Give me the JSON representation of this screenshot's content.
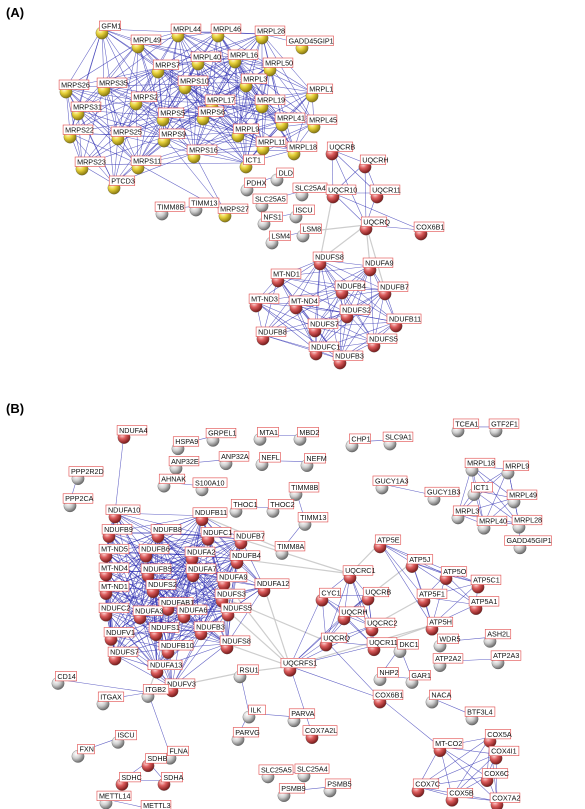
{
  "panels": [
    {
      "label": "(A)",
      "nodes": [
        {
          "id": "GFM1",
          "label": "GFM1",
          "color": "yellow"
        },
        {
          "id": "MRPL49",
          "label": "MRPL49",
          "color": "yellow"
        },
        {
          "id": "MRPL44",
          "label": "MRPL44",
          "color": "yellow"
        },
        {
          "id": "MRPL46",
          "label": "MRPL46",
          "color": "yellow"
        },
        {
          "id": "MRPL28",
          "label": "MRPL28",
          "color": "yellow"
        },
        {
          "id": "GADD45GIP1",
          "label": "GADD45GIP1",
          "color": "yellow"
        },
        {
          "id": "MRPS7",
          "label": "MRPS7",
          "color": "yellow"
        },
        {
          "id": "MRPL40",
          "label": "MRPL40",
          "color": "yellow"
        },
        {
          "id": "MRPL16",
          "label": "MRPL16",
          "color": "yellow"
        },
        {
          "id": "MRPL50",
          "label": "MRPL50",
          "color": "yellow"
        },
        {
          "id": "MRPS26",
          "label": "MRPS26",
          "color": "yellow"
        },
        {
          "id": "MRPS35",
          "label": "MRPS35",
          "color": "yellow"
        },
        {
          "id": "MRPS10",
          "label": "MRPS10",
          "color": "yellow"
        },
        {
          "id": "MRPL3",
          "label": "MRPL3",
          "color": "yellow"
        },
        {
          "id": "MRPL1",
          "label": "MRPL1",
          "color": "yellow"
        },
        {
          "id": "MRPS31",
          "label": "MRPS31",
          "color": "yellow"
        },
        {
          "id": "MRPS2",
          "label": "MRPS2",
          "color": "yellow"
        },
        {
          "id": "MRPL17",
          "label": "MRPL17",
          "color": "yellow"
        },
        {
          "id": "MRPL19",
          "label": "MRPL19",
          "color": "yellow"
        },
        {
          "id": "MRPS5",
          "label": "MRPS5",
          "color": "yellow"
        },
        {
          "id": "MRPS6",
          "label": "MRPS6",
          "color": "yellow"
        },
        {
          "id": "MRPL41",
          "label": "MRPL41",
          "color": "yellow"
        },
        {
          "id": "MRPL45",
          "label": "MRPL45",
          "color": "yellow"
        },
        {
          "id": "MRPS22",
          "label": "MRPS22",
          "color": "yellow"
        },
        {
          "id": "MRPS25",
          "label": "MRPS25",
          "color": "yellow"
        },
        {
          "id": "MRPS9",
          "label": "MRPS9",
          "color": "yellow"
        },
        {
          "id": "MRPL9",
          "label": "MRPL9",
          "color": "yellow"
        },
        {
          "id": "MRPL11",
          "label": "MRPL11",
          "color": "yellow"
        },
        {
          "id": "MRPL18",
          "label": "MRPL18",
          "color": "yellow"
        },
        {
          "id": "MRPS16",
          "label": "MRPS16",
          "color": "yellow"
        },
        {
          "id": "ICT1",
          "label": "ICT1",
          "color": "yellow"
        },
        {
          "id": "MRPS23",
          "label": "MRPS23",
          "color": "yellow"
        },
        {
          "id": "MRPS11",
          "label": "MRPS11",
          "color": "yellow"
        },
        {
          "id": "PTCD3",
          "label": "PTCD3",
          "color": "yellow"
        },
        {
          "id": "MRPS27",
          "label": "MRPS27",
          "color": "yellow"
        },
        {
          "id": "TIMM8B",
          "label": "TIMM8B",
          "color": "gray"
        },
        {
          "id": "TIMM13",
          "label": "TIMM13",
          "color": "gray"
        },
        {
          "id": "PDHX",
          "label": "PDHX",
          "color": "gray"
        },
        {
          "id": "DLD",
          "label": "DLD",
          "color": "gray"
        },
        {
          "id": "SLC25A4",
          "label": "SLC25A4",
          "color": "gray"
        },
        {
          "id": "SLC25A5",
          "label": "SLC25A5",
          "color": "gray"
        },
        {
          "id": "ISCU",
          "label": "ISCU",
          "color": "gray"
        },
        {
          "id": "NFS1",
          "label": "NFS1",
          "color": "gray"
        },
        {
          "id": "LSM4",
          "label": "LSM4",
          "color": "gray"
        },
        {
          "id": "LSM8",
          "label": "LSM8",
          "color": "gray"
        },
        {
          "id": "UQCRB",
          "label": "UQCRB",
          "color": "red"
        },
        {
          "id": "UQCRH",
          "label": "UQCRH",
          "color": "red"
        },
        {
          "id": "UQCR10",
          "label": "UQCR10",
          "color": "red"
        },
        {
          "id": "UQCR11",
          "label": "UQCR11",
          "color": "red"
        },
        {
          "id": "UQCRQ",
          "label": "UQCRQ",
          "color": "red"
        },
        {
          "id": "COX6B1",
          "label": "COX6B1",
          "color": "red"
        },
        {
          "id": "NDUFS8",
          "label": "NDUFS8",
          "color": "red"
        },
        {
          "id": "NDUFA9",
          "label": "NDUFA9",
          "color": "red"
        },
        {
          "id": "MT-ND1",
          "label": "MT-ND1",
          "color": "red"
        },
        {
          "id": "NDUFB4",
          "label": "NDUFB4",
          "color": "red"
        },
        {
          "id": "NDUFB7",
          "label": "NDUFB7",
          "color": "red"
        },
        {
          "id": "MT-ND3",
          "label": "MT-ND3",
          "color": "red"
        },
        {
          "id": "MT-ND4",
          "label": "MT-ND4",
          "color": "red"
        },
        {
          "id": "NDUFS2",
          "label": "NDUFS2",
          "color": "red"
        },
        {
          "id": "NDUFS7",
          "label": "NDUFS7",
          "color": "red"
        },
        {
          "id": "NDUFB11",
          "label": "NDUFB11",
          "color": "red"
        },
        {
          "id": "NDUFB8",
          "label": "NDUFB8",
          "color": "red"
        },
        {
          "id": "NDUFS5",
          "label": "NDUFS5",
          "color": "red"
        },
        {
          "id": "NDUFC1",
          "label": "NDUFC1",
          "color": "red"
        },
        {
          "id": "NDUFB3",
          "label": "NDUFB3",
          "color": "red"
        }
      ]
    },
    {
      "label": "(B)",
      "nodes": [
        {
          "id": "NDUFA4",
          "label": "NDUFA4",
          "color": "red"
        },
        {
          "id": "HSPA9",
          "label": "HSPA9",
          "color": "gray"
        },
        {
          "id": "GRPEL1",
          "label": "GRPEL1",
          "color": "gray"
        },
        {
          "id": "ANP32E",
          "label": "ANP32E",
          "color": "gray"
        },
        {
          "id": "ANP32A",
          "label": "ANP32A",
          "color": "gray"
        },
        {
          "id": "AHNAK",
          "label": "AHNAK",
          "color": "gray"
        },
        {
          "id": "S100A10",
          "label": "S100A10",
          "color": "gray"
        },
        {
          "id": "MTA1",
          "label": "MTA1",
          "color": "gray"
        },
        {
          "id": "MBD2",
          "label": "MBD2",
          "color": "gray"
        },
        {
          "id": "NEFL",
          "label": "NEFL",
          "color": "gray"
        },
        {
          "id": "NEFM",
          "label": "NEFM",
          "color": "gray"
        },
        {
          "id": "CHP1",
          "label": "CHP1",
          "color": "gray"
        },
        {
          "id": "SLC9A1",
          "label": "SLC9A1",
          "color": "gray"
        },
        {
          "id": "TCEA1",
          "label": "TCEA1",
          "color": "gray"
        },
        {
          "id": "GTF2F1",
          "label": "GTF2F1",
          "color": "gray"
        },
        {
          "id": "PPP2R2D",
          "label": "PPP2R2D",
          "color": "gray"
        },
        {
          "id": "PPP2CA",
          "label": "PPP2CA",
          "color": "gray"
        },
        {
          "id": "TIMM8B",
          "label": "TIMM8B",
          "color": "gray"
        },
        {
          "id": "GUCY1A3",
          "label": "GUCY1A3",
          "color": "gray"
        },
        {
          "id": "GUCY1B3",
          "label": "GUCY1B3",
          "color": "gray"
        },
        {
          "id": "MRPL18",
          "label": "MRPL18",
          "color": "gray"
        },
        {
          "id": "MRPL9",
          "label": "MRPL9",
          "color": "gray"
        },
        {
          "id": "ICT1",
          "label": "ICT1",
          "color": "gray"
        },
        {
          "id": "MRPL49",
          "label": "MRPL49",
          "color": "gray"
        },
        {
          "id": "MRPL3",
          "label": "MRPL3",
          "color": "gray"
        },
        {
          "id": "MRPL40",
          "label": "MRPL40",
          "color": "gray"
        },
        {
          "id": "MRPL28",
          "label": "MRPL28",
          "color": "gray"
        },
        {
          "id": "GADD45GIP1",
          "label": "GADD45GIP1",
          "color": "gray"
        },
        {
          "id": "THOC1",
          "label": "THOC1",
          "color": "gray"
        },
        {
          "id": "THOC2",
          "label": "THOC2",
          "color": "gray"
        },
        {
          "id": "TIMM13",
          "label": "TIMM13",
          "color": "gray"
        },
        {
          "id": "TIMM8A",
          "label": "TIMM8A",
          "color": "gray"
        },
        {
          "id": "NDUFA10",
          "label": "NDUFA10",
          "color": "red"
        },
        {
          "id": "NDUFB11",
          "label": "NDUFB11",
          "color": "red"
        },
        {
          "id": "NDUFB9",
          "label": "NDUFB9",
          "color": "red"
        },
        {
          "id": "NDUFB8",
          "label": "NDUFB8",
          "color": "red"
        },
        {
          "id": "NDUFC1",
          "label": "NDUFC1",
          "color": "red"
        },
        {
          "id": "NDUFB7",
          "label": "NDUFB7",
          "color": "red"
        },
        {
          "id": "MT-ND5",
          "label": "MT-ND5",
          "color": "red"
        },
        {
          "id": "NDUFB6",
          "label": "NDUFB6",
          "color": "red"
        },
        {
          "id": "NDUFA2",
          "label": "NDUFA2",
          "color": "red"
        },
        {
          "id": "MT-ND4",
          "label": "MT-ND4",
          "color": "red"
        },
        {
          "id": "NDUFB5",
          "label": "NDUFB5",
          "color": "red"
        },
        {
          "id": "NDUFA7",
          "label": "NDUFA7",
          "color": "red"
        },
        {
          "id": "NDUFB4",
          "label": "NDUFB4",
          "color": "red"
        },
        {
          "id": "MT-ND1",
          "label": "MT-ND1",
          "color": "red"
        },
        {
          "id": "NDUFS2",
          "label": "NDUFS2",
          "color": "red"
        },
        {
          "id": "NDUFA9",
          "label": "NDUFA9",
          "color": "red"
        },
        {
          "id": "NDUFAB1",
          "label": "NDUFAB1",
          "color": "red"
        },
        {
          "id": "NDUFS3",
          "label": "NDUFS3",
          "color": "red"
        },
        {
          "id": "NDUFA12",
          "label": "NDUFA12",
          "color": "red"
        },
        {
          "id": "NDUFC2",
          "label": "NDUFC2",
          "color": "red"
        },
        {
          "id": "NDUFA3",
          "label": "NDUFA3",
          "color": "red"
        },
        {
          "id": "NDUFA6",
          "label": "NDUFA6",
          "color": "red"
        },
        {
          "id": "NDUFS5",
          "label": "NDUFS5",
          "color": "red"
        },
        {
          "id": "NDUFS1",
          "label": "NDUFS1",
          "color": "red"
        },
        {
          "id": "NDUFB3",
          "label": "NDUFB3",
          "color": "red"
        },
        {
          "id": "NDUFS8",
          "label": "NDUFS8",
          "color": "red"
        },
        {
          "id": "NDUFV1",
          "label": "NDUFV1",
          "color": "red"
        },
        {
          "id": "NDUFB10",
          "label": "NDUFB10",
          "color": "red"
        },
        {
          "id": "NDUFS7",
          "label": "NDUFS7",
          "color": "red"
        },
        {
          "id": "NDUFA13",
          "label": "NDUFA13",
          "color": "red"
        },
        {
          "id": "NDUFV3",
          "label": "NDUFV3",
          "color": "red"
        },
        {
          "id": "CD14",
          "label": "CD14",
          "color": "gray"
        },
        {
          "id": "ITGAX",
          "label": "ITGAX",
          "color": "gray"
        },
        {
          "id": "ITGB2",
          "label": "ITGB2",
          "color": "gray"
        },
        {
          "id": "RSU1",
          "label": "RSU1",
          "color": "gray"
        },
        {
          "id": "ILK",
          "label": "ILK",
          "color": "gray"
        },
        {
          "id": "PARVA",
          "label": "PARVA",
          "color": "gray"
        },
        {
          "id": "PARVG",
          "label": "PARVG",
          "color": "gray"
        },
        {
          "id": "COX7A2L",
          "label": "COX7A2L",
          "color": "red"
        },
        {
          "id": "ISCU",
          "label": "ISCU",
          "color": "gray"
        },
        {
          "id": "FXN",
          "label": "FXN",
          "color": "gray"
        },
        {
          "id": "FLNA",
          "label": "FLNA",
          "color": "gray"
        },
        {
          "id": "SDHB",
          "label": "SDHB",
          "color": "red"
        },
        {
          "id": "SDHC",
          "label": "SDHC",
          "color": "red"
        },
        {
          "id": "SDHA",
          "label": "SDHA",
          "color": "red"
        },
        {
          "id": "METTL14",
          "label": "METTL14",
          "color": "gray"
        },
        {
          "id": "METTL3",
          "label": "METTL3",
          "color": "gray"
        },
        {
          "id": "SLC25A5",
          "label": "SLC25A5",
          "color": "gray"
        },
        {
          "id": "SLC25A4",
          "label": "SLC25A4",
          "color": "gray"
        },
        {
          "id": "PSMB9",
          "label": "PSMB9",
          "color": "gray"
        },
        {
          "id": "PSMB5",
          "label": "PSMB5",
          "color": "gray"
        },
        {
          "id": "UQCRC1",
          "label": "UQCRC1",
          "color": "red"
        },
        {
          "id": "CYC1",
          "label": "CYC1",
          "color": "red"
        },
        {
          "id": "UQCRB",
          "label": "UQCRB",
          "color": "red"
        },
        {
          "id": "UQCRH",
          "label": "UQCRH",
          "color": "red"
        },
        {
          "id": "UQCRC2",
          "label": "UQCRC2",
          "color": "red"
        },
        {
          "id": "UQCRQ",
          "label": "UQCRQ",
          "color": "red"
        },
        {
          "id": "UQCR11",
          "label": "UQCR11",
          "color": "red"
        },
        {
          "id": "UQCRFS1",
          "label": "UQCRFS1",
          "color": "red"
        },
        {
          "id": "DKC1",
          "label": "DKC1",
          "color": "gray"
        },
        {
          "id": "NHP2",
          "label": "NHP2",
          "color": "gray"
        },
        {
          "id": "GAR1",
          "label": "GAR1",
          "color": "gray"
        },
        {
          "id": "COX6B1",
          "label": "COX6B1",
          "color": "red"
        },
        {
          "id": "ATP5E",
          "label": "ATP5E",
          "color": "red"
        },
        {
          "id": "ATP5J",
          "label": "ATP5J",
          "color": "red"
        },
        {
          "id": "ATP5O",
          "label": "ATP5O",
          "color": "red"
        },
        {
          "id": "ATP5C1",
          "label": "ATP5C1",
          "color": "red"
        },
        {
          "id": "ATP5F1",
          "label": "ATP5F1",
          "color": "red"
        },
        {
          "id": "ATP5A1",
          "label": "ATP5A1",
          "color": "red"
        },
        {
          "id": "ATP5H",
          "label": "ATP5H",
          "color": "red"
        },
        {
          "id": "WDR5",
          "label": "WDR5",
          "color": "gray"
        },
        {
          "id": "ASH2L",
          "label": "ASH2L",
          "color": "gray"
        },
        {
          "id": "ATP2A2",
          "label": "ATP2A2",
          "color": "gray"
        },
        {
          "id": "ATP2A3",
          "label": "ATP2A3",
          "color": "gray"
        },
        {
          "id": "NACA",
          "label": "NACA",
          "color": "gray"
        },
        {
          "id": "BTF3L4",
          "label": "BTF3L4",
          "color": "gray"
        },
        {
          "id": "COX5A",
          "label": "COX5A",
          "color": "red"
        },
        {
          "id": "COX4I1",
          "label": "COX4I1",
          "color": "red"
        },
        {
          "id": "MT-CO2",
          "label": "MT-CO2",
          "color": "red"
        },
        {
          "id": "COX6C",
          "label": "COX6C",
          "color": "red"
        },
        {
          "id": "COX7C",
          "label": "COX7C",
          "color": "red"
        },
        {
          "id": "COX5B",
          "label": "COX5B",
          "color": "red"
        },
        {
          "id": "COX7A2",
          "label": "COX7A2",
          "color": "red"
        }
      ]
    }
  ],
  "colors": {
    "yellow": "#e8d23a",
    "red": "#dc5c5c",
    "gray": "#cfcfcf",
    "edge": "#2b2bb0",
    "edge_light": "#c8c8c8",
    "label_border": "#e04848"
  }
}
